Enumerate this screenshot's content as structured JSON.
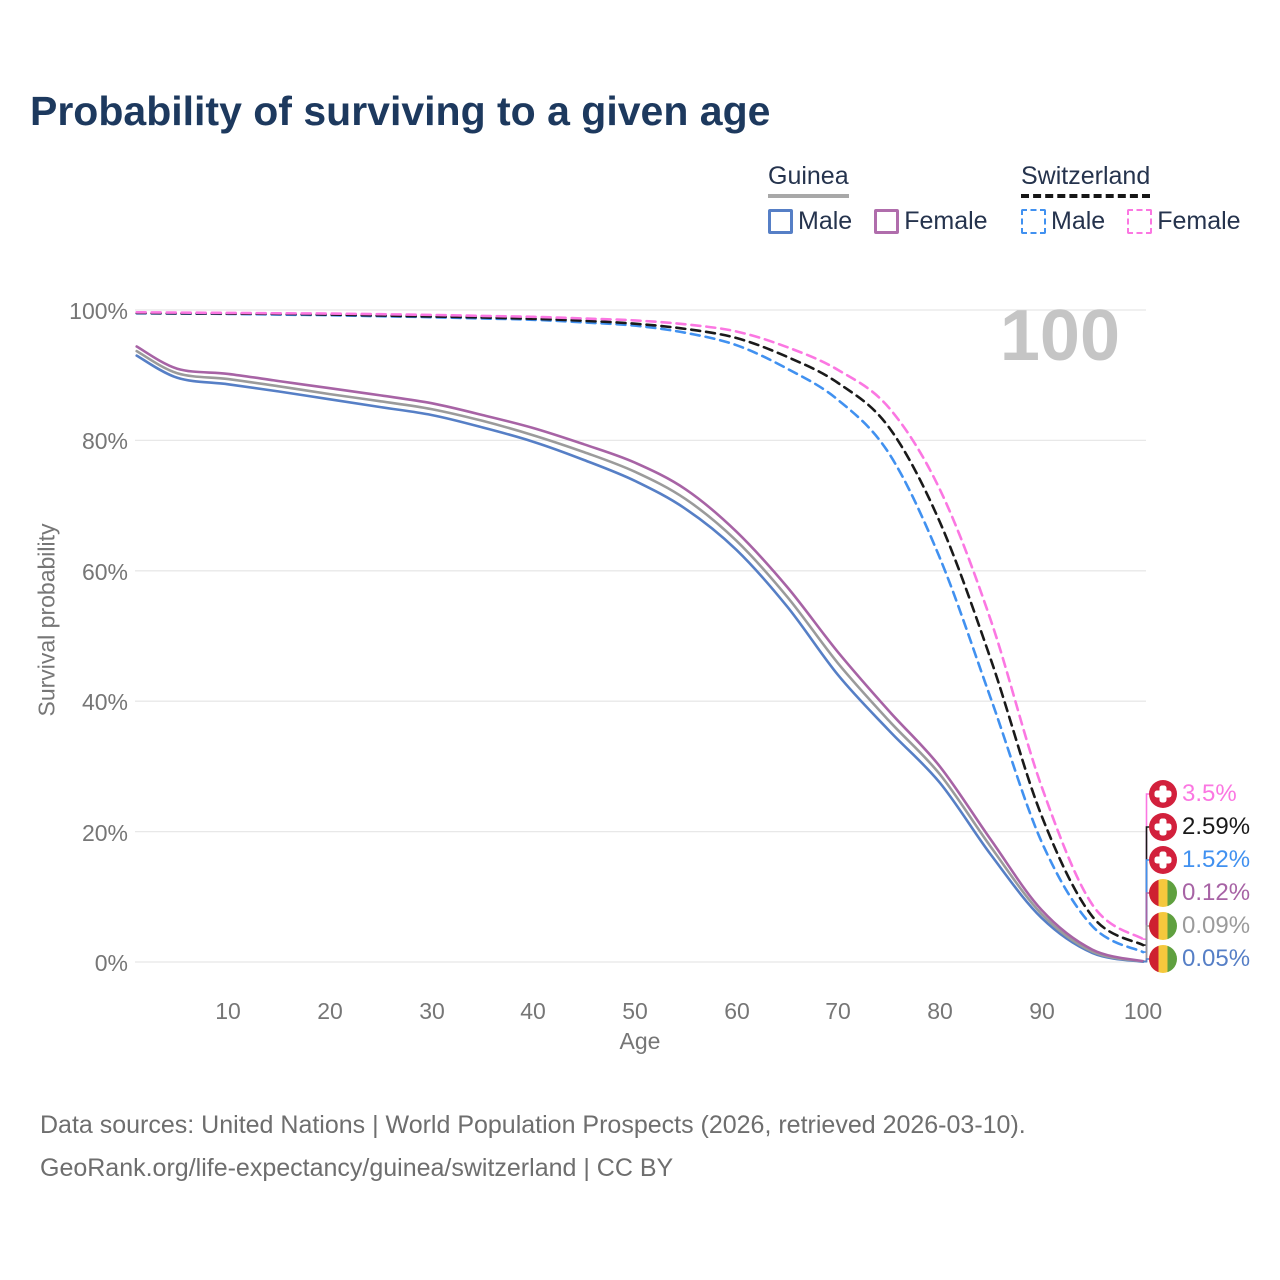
{
  "title": "Probability of surviving to a given age",
  "watermark": "100",
  "legend": {
    "groups": [
      {
        "name": "Guinea",
        "line_style": "solid",
        "underline_color": "#a8a8a8",
        "items": [
          {
            "label": "Male",
            "color": "#567fc6"
          },
          {
            "label": "Female",
            "color": "#b06dac"
          }
        ]
      },
      {
        "name": "Switzerland",
        "line_style": "dashed",
        "underline_color": "#161616",
        "items": [
          {
            "label": "Male",
            "color": "#4191f0"
          },
          {
            "label": "Female",
            "color": "#fb77e2"
          }
        ]
      }
    ]
  },
  "y_axis": {
    "title": "Survival probability",
    "ticks": [
      "100%",
      "80%",
      "60%",
      "40%",
      "20%",
      "0%"
    ]
  },
  "x_axis": {
    "title": "Age",
    "ticks": [
      "10",
      "20",
      "30",
      "40",
      "50",
      "60",
      "70",
      "80",
      "90",
      "100"
    ]
  },
  "end_labels": [
    {
      "flag": "switzerland",
      "series_id": "ch-female",
      "value": "3.5%",
      "color": "#fb77e2"
    },
    {
      "flag": "switzerland",
      "series_id": "ch-both",
      "value": "2.59%",
      "color": "#1a1a1a"
    },
    {
      "flag": "switzerland",
      "series_id": "ch-male",
      "value": "1.52%",
      "color": "#4191f0"
    },
    {
      "flag": "guinea",
      "series_id": "gn-female",
      "value": "0.12%",
      "color": "#a763a5"
    },
    {
      "flag": "guinea",
      "series_id": "gn-both",
      "value": "0.09%",
      "color": "#9b9b9b"
    },
    {
      "flag": "guinea",
      "series_id": "gn-male",
      "value": "0.05%",
      "color": "#567fc6"
    }
  ],
  "footer": {
    "line1": "Data sources: United Nations | World Population Prospects (2026, retrieved 2026-03-10).",
    "line2": "GeoRank.org/life-expectancy/guinea/switzerland | CC BY"
  },
  "chart_data": {
    "type": "line",
    "title": "Probability of surviving to a given age",
    "xlabel": "Age",
    "ylabel": "Survival probability",
    "xlim": [
      0,
      100
    ],
    "ylim": [
      0,
      100
    ],
    "grid": "horizontal",
    "legend_position": "top-right",
    "x": [
      1,
      5,
      10,
      15,
      20,
      25,
      30,
      35,
      40,
      45,
      50,
      55,
      60,
      65,
      70,
      75,
      80,
      85,
      90,
      95,
      100
    ],
    "series": [
      {
        "id": "gn-male",
        "name": "Guinea Male",
        "country": "Guinea",
        "sex": "male",
        "dash": "solid",
        "color": "#567fc6",
        "values": [
          93.0,
          89.6,
          88.6,
          87.5,
          86.3,
          85.1,
          83.9,
          82.0,
          79.8,
          77.0,
          73.8,
          69.5,
          63.2,
          54.5,
          44.0,
          35.5,
          27.5,
          16.5,
          6.8,
          1.4,
          0.05
        ]
      },
      {
        "id": "gn-both",
        "name": "Guinea Both sexes",
        "country": "Guinea",
        "sex": "both",
        "dash": "solid",
        "color": "#9b9b9b",
        "values": [
          93.7,
          90.3,
          89.4,
          88.3,
          87.1,
          86.0,
          84.8,
          83.0,
          80.8,
          78.2,
          75.2,
          71.0,
          64.6,
          56.0,
          45.8,
          37.0,
          28.8,
          17.7,
          7.4,
          1.6,
          0.09
        ]
      },
      {
        "id": "gn-female",
        "name": "Guinea Female",
        "country": "Guinea",
        "sex": "female",
        "dash": "solid",
        "color": "#a763a5",
        "values": [
          94.4,
          91.0,
          90.2,
          89.1,
          88.0,
          86.9,
          85.7,
          83.9,
          81.9,
          79.4,
          76.6,
          72.5,
          66.0,
          57.5,
          47.5,
          38.5,
          30.0,
          18.8,
          8.0,
          1.9,
          0.12
        ]
      },
      {
        "id": "ch-male",
        "name": "Switzerland Male",
        "country": "Switzerland",
        "sex": "male",
        "dash": "dashed",
        "color": "#4191f0",
        "values": [
          99.5,
          99.45,
          99.4,
          99.3,
          99.2,
          99.05,
          98.9,
          98.7,
          98.5,
          98.1,
          97.6,
          96.5,
          94.6,
          91.0,
          86.2,
          78.0,
          62.0,
          40.5,
          18.5,
          5.5,
          1.52
        ]
      },
      {
        "id": "ch-both",
        "name": "Switzerland Both sexes",
        "country": "Switzerland",
        "sex": "both",
        "dash": "dashed",
        "color": "#1a1a1a",
        "values": [
          99.55,
          99.5,
          99.45,
          99.4,
          99.3,
          99.15,
          99.0,
          98.85,
          98.65,
          98.35,
          97.9,
          97.1,
          95.7,
          92.8,
          88.8,
          82.0,
          67.5,
          46.5,
          22.5,
          7.0,
          2.59
        ]
      },
      {
        "id": "ch-female",
        "name": "Switzerland Female",
        "country": "Switzerland",
        "sex": "female",
        "dash": "dashed",
        "color": "#fb77e2",
        "values": [
          99.65,
          99.6,
          99.55,
          99.5,
          99.45,
          99.35,
          99.25,
          99.1,
          98.95,
          98.7,
          98.4,
          97.8,
          96.7,
          94.3,
          90.8,
          85.0,
          72.5,
          52.5,
          27.0,
          8.8,
          3.5
        ]
      }
    ],
    "end_values": {
      "ch-female": 3.5,
      "ch-both": 2.59,
      "ch-male": 1.52,
      "gn-female": 0.12,
      "gn-both": 0.09,
      "gn-male": 0.05
    }
  }
}
